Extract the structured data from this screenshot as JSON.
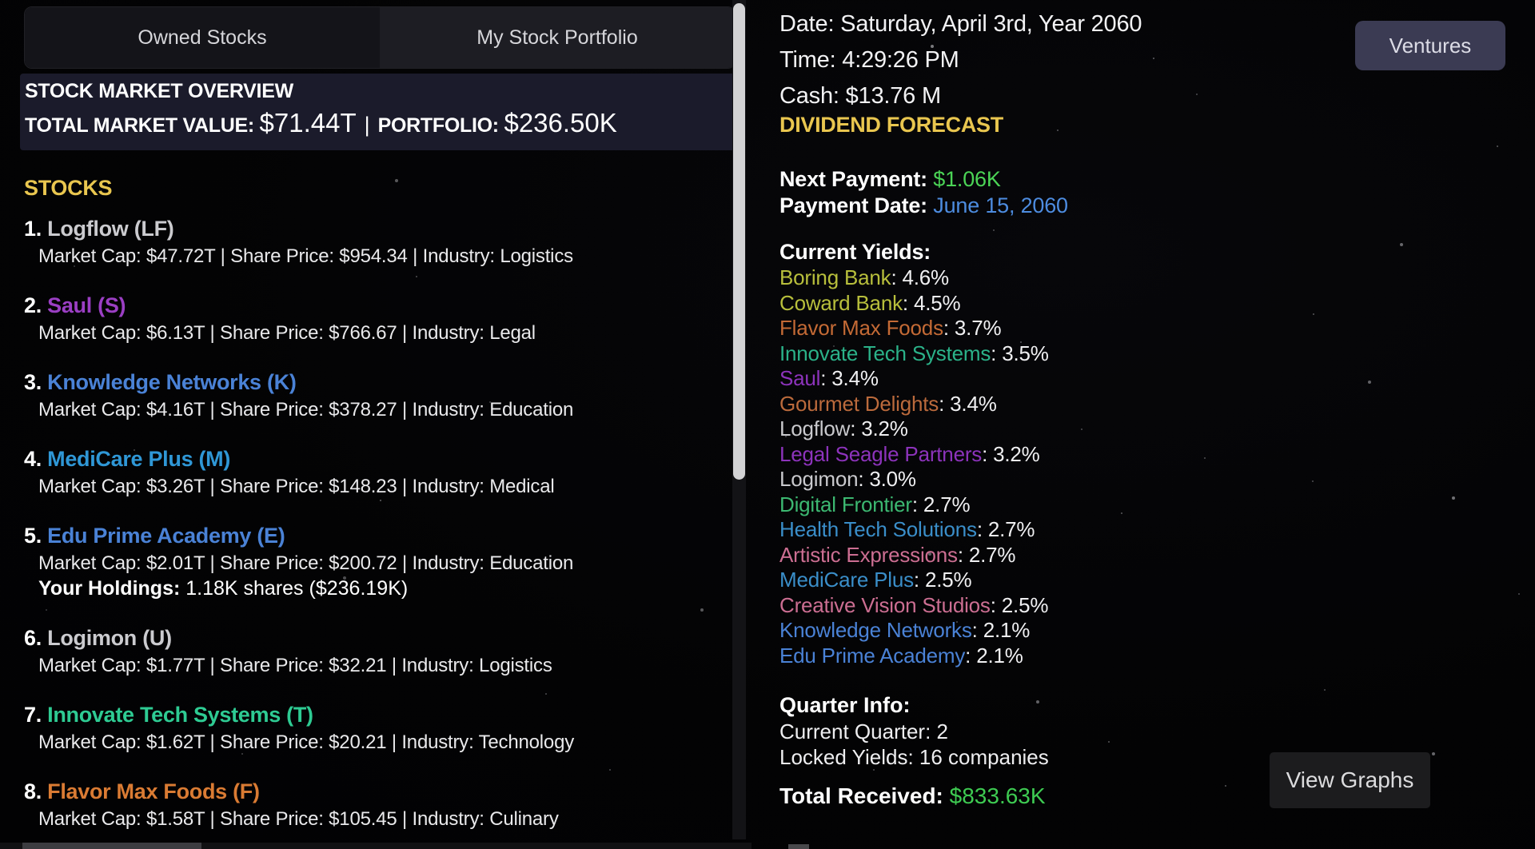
{
  "theme": {
    "gold": "#e9c64f",
    "positive_green": "#4bd456",
    "link_blue": "#4d8ce0",
    "panel_navy": "#1b1b2b",
    "button_purple": "#3b3b53"
  },
  "tabs": {
    "owned": "Owned Stocks",
    "portfolio": "My Stock Portfolio"
  },
  "overview": {
    "title": "STOCK MARKET OVERVIEW",
    "market_value_label": "TOTAL MARKET VALUE:",
    "market_value": "$71.44T",
    "separator": "|",
    "portfolio_label": "PORTFOLIO:",
    "portfolio_value": "$236.50K"
  },
  "stocks": {
    "header": "STOCKS",
    "holdings_label": "Your Holdings:",
    "items": [
      {
        "rank": "1.",
        "name": "Logflow (LF)",
        "color": "#cbcbcf",
        "details": "Market Cap: $47.72T | Share Price: $954.34 | Industry: Logistics"
      },
      {
        "rank": "2.",
        "name": "Saul (S)",
        "color": "#9b3fc4",
        "details": "Market Cap: $6.13T | Share Price: $766.67 | Industry: Legal"
      },
      {
        "rank": "3.",
        "name": "Knowledge Networks (K)",
        "color": "#4a82d6",
        "details": "Market Cap: $4.16T | Share Price: $378.27 | Industry: Education"
      },
      {
        "rank": "4.",
        "name": "MediCare Plus (M)",
        "color": "#2f97d6",
        "details": "Market Cap: $3.26T | Share Price: $148.23 | Industry: Medical"
      },
      {
        "rank": "5.",
        "name": "Edu Prime Academy (E)",
        "color": "#4a82d6",
        "details": "Market Cap: $2.01T | Share Price: $200.72 | Industry: Education",
        "holdings": "1.18K shares ($236.19K)"
      },
      {
        "rank": "6.",
        "name": "Logimon (U)",
        "color": "#cbcbcf",
        "details": "Market Cap: $1.77T | Share Price: $32.21 | Industry: Logistics"
      },
      {
        "rank": "7.",
        "name": "Innovate Tech Systems (T)",
        "color": "#2ecb93",
        "details": "Market Cap: $1.62T | Share Price: $20.21 | Industry: Technology"
      },
      {
        "rank": "8.",
        "name": "Flavor Max Foods (F)",
        "color": "#da7b33",
        "details": "Market Cap: $1.58T | Share Price: $105.45 | Industry: Culinary"
      }
    ]
  },
  "hud": {
    "date": "Date: Saturday, April 3rd, Year 2060",
    "time": "Time: 4:29:26 PM",
    "cash": "Cash: $13.76 M",
    "ventures_button": "Ventures",
    "view_graphs_button": "View Graphs"
  },
  "dividends": {
    "header": "DIVIDEND FORECAST",
    "next_payment_label": "Next Payment:",
    "next_payment_value": "$1.06K",
    "payment_date_label": "Payment Date:",
    "payment_date_value": "June 15, 2060",
    "yields_header": "Current Yields:",
    "yields": [
      {
        "name": "Boring Bank",
        "value": "4.6%",
        "color": "#b8bf3c"
      },
      {
        "name": "Coward Bank",
        "value": "4.5%",
        "color": "#b8bf3c"
      },
      {
        "name": "Flavor Max Foods",
        "value": "3.7%",
        "color": "#c46a35"
      },
      {
        "name": "Innovate Tech Systems",
        "value": "3.5%",
        "color": "#2bb289"
      },
      {
        "name": "Saul",
        "value": "3.4%",
        "color": "#8c33bb"
      },
      {
        "name": "Gourmet Delights",
        "value": "3.4%",
        "color": "#bb6a3c"
      },
      {
        "name": "Logflow",
        "value": "3.2%",
        "color": "#c9c9cd"
      },
      {
        "name": "Legal Seagle Partners",
        "value": "3.2%",
        "color": "#8c33bb"
      },
      {
        "name": "Logimon",
        "value": "3.0%",
        "color": "#c9c9cd"
      },
      {
        "name": "Digital Frontier",
        "value": "2.7%",
        "color": "#3cb871"
      },
      {
        "name": "Health Tech Solutions",
        "value": "2.7%",
        "color": "#3a8ec9"
      },
      {
        "name": "Artistic Expressions",
        "value": "2.7%",
        "color": "#cc6e92"
      },
      {
        "name": "MediCare Plus",
        "value": "2.5%",
        "color": "#3a8ec9"
      },
      {
        "name": "Creative Vision Studios",
        "value": "2.5%",
        "color": "#cc6e92"
      },
      {
        "name": "Knowledge Networks",
        "value": "2.1%",
        "color": "#4a82d6"
      },
      {
        "name": "Edu Prime Academy",
        "value": "2.1%",
        "color": "#4a82d6"
      }
    ],
    "quarter_header": "Quarter Info:",
    "current_quarter": "Current Quarter: 2",
    "locked_yields": "Locked Yields: 16 companies",
    "total_received_label": "Total Received:",
    "total_received_value": "$833.63K"
  }
}
